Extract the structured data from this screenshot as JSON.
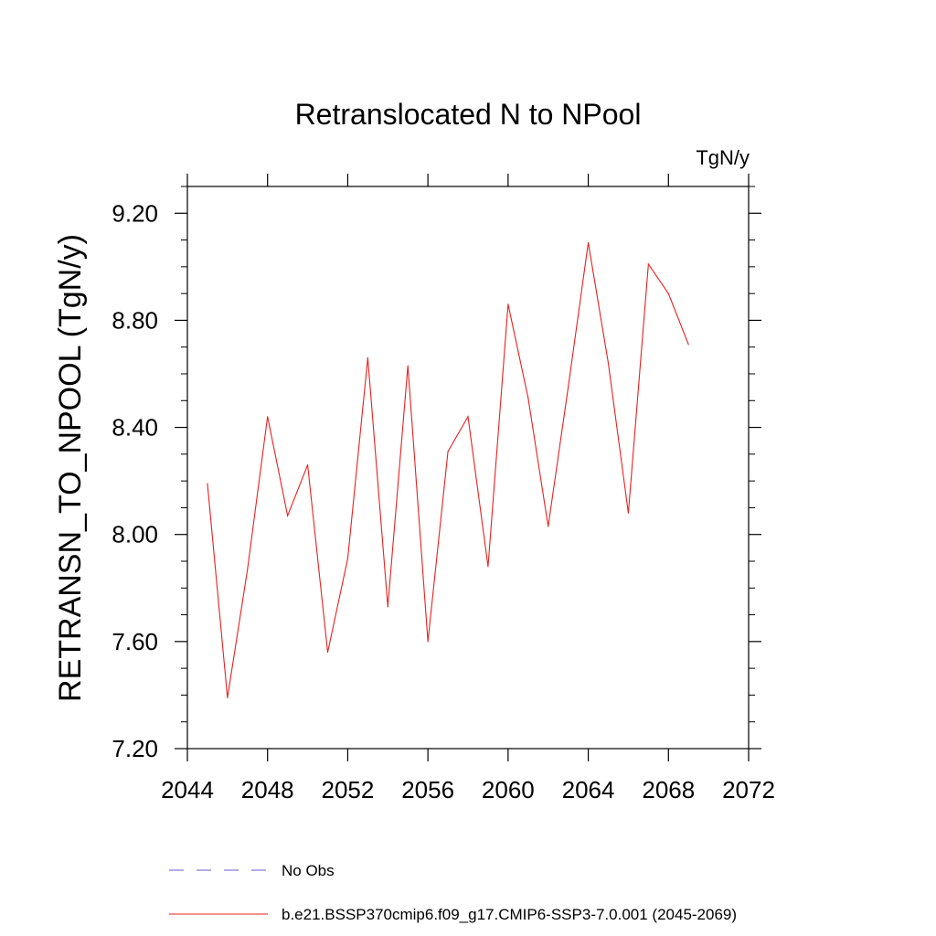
{
  "chart_data": {
    "type": "line",
    "title": "Retranslocated N to NPool",
    "units": "TgN/y",
    "xlabel": "",
    "ylabel": "RETRANSN_TO_NPOOL  (TgN/y)",
    "xlim": [
      2044,
      2072
    ],
    "ylim": [
      7.2,
      9.3
    ],
    "x_ticks": [
      2044,
      2048,
      2052,
      2056,
      2060,
      2064,
      2068,
      2072
    ],
    "y_ticks": [
      7.2,
      7.6,
      8.0,
      8.4,
      8.8,
      9.2
    ],
    "x_tick_labels": [
      "2044",
      "2048",
      "2052",
      "2056",
      "2060",
      "2064",
      "2068",
      "2072"
    ],
    "y_tick_labels": [
      "7.20",
      "7.60",
      "8.00",
      "8.40",
      "8.80",
      "9.20"
    ],
    "grid": false,
    "legend_position": "bottom",
    "series": [
      {
        "name": "b.e21.BSSP370cmip6.f09_g17.CMIP6-SSP3-7.0.001 (2045-2069)",
        "color": "#e8201f",
        "dash": "solid",
        "x": [
          2045,
          2046,
          2047,
          2048,
          2049,
          2050,
          2051,
          2052,
          2053,
          2054,
          2055,
          2056,
          2057,
          2058,
          2059,
          2060,
          2061,
          2062,
          2063,
          2064,
          2065,
          2066,
          2067,
          2068,
          2069
        ],
        "y": [
          8.19,
          7.39,
          7.87,
          8.44,
          8.07,
          8.26,
          7.56,
          7.91,
          8.66,
          7.73,
          8.63,
          7.6,
          8.31,
          8.44,
          7.88,
          8.86,
          8.51,
          8.03,
          8.55,
          9.09,
          8.64,
          8.08,
          9.01,
          8.9,
          8.71
        ]
      }
    ],
    "legend": [
      {
        "label": "No Obs",
        "color": "#6a5acd",
        "dash": "dashed"
      },
      {
        "label": "b.e21.BSSP370cmip6.f09_g17.CMIP6-SSP3-7.0.001 (2045-2069)",
        "color": "#e8201f",
        "dash": "solid"
      }
    ]
  }
}
